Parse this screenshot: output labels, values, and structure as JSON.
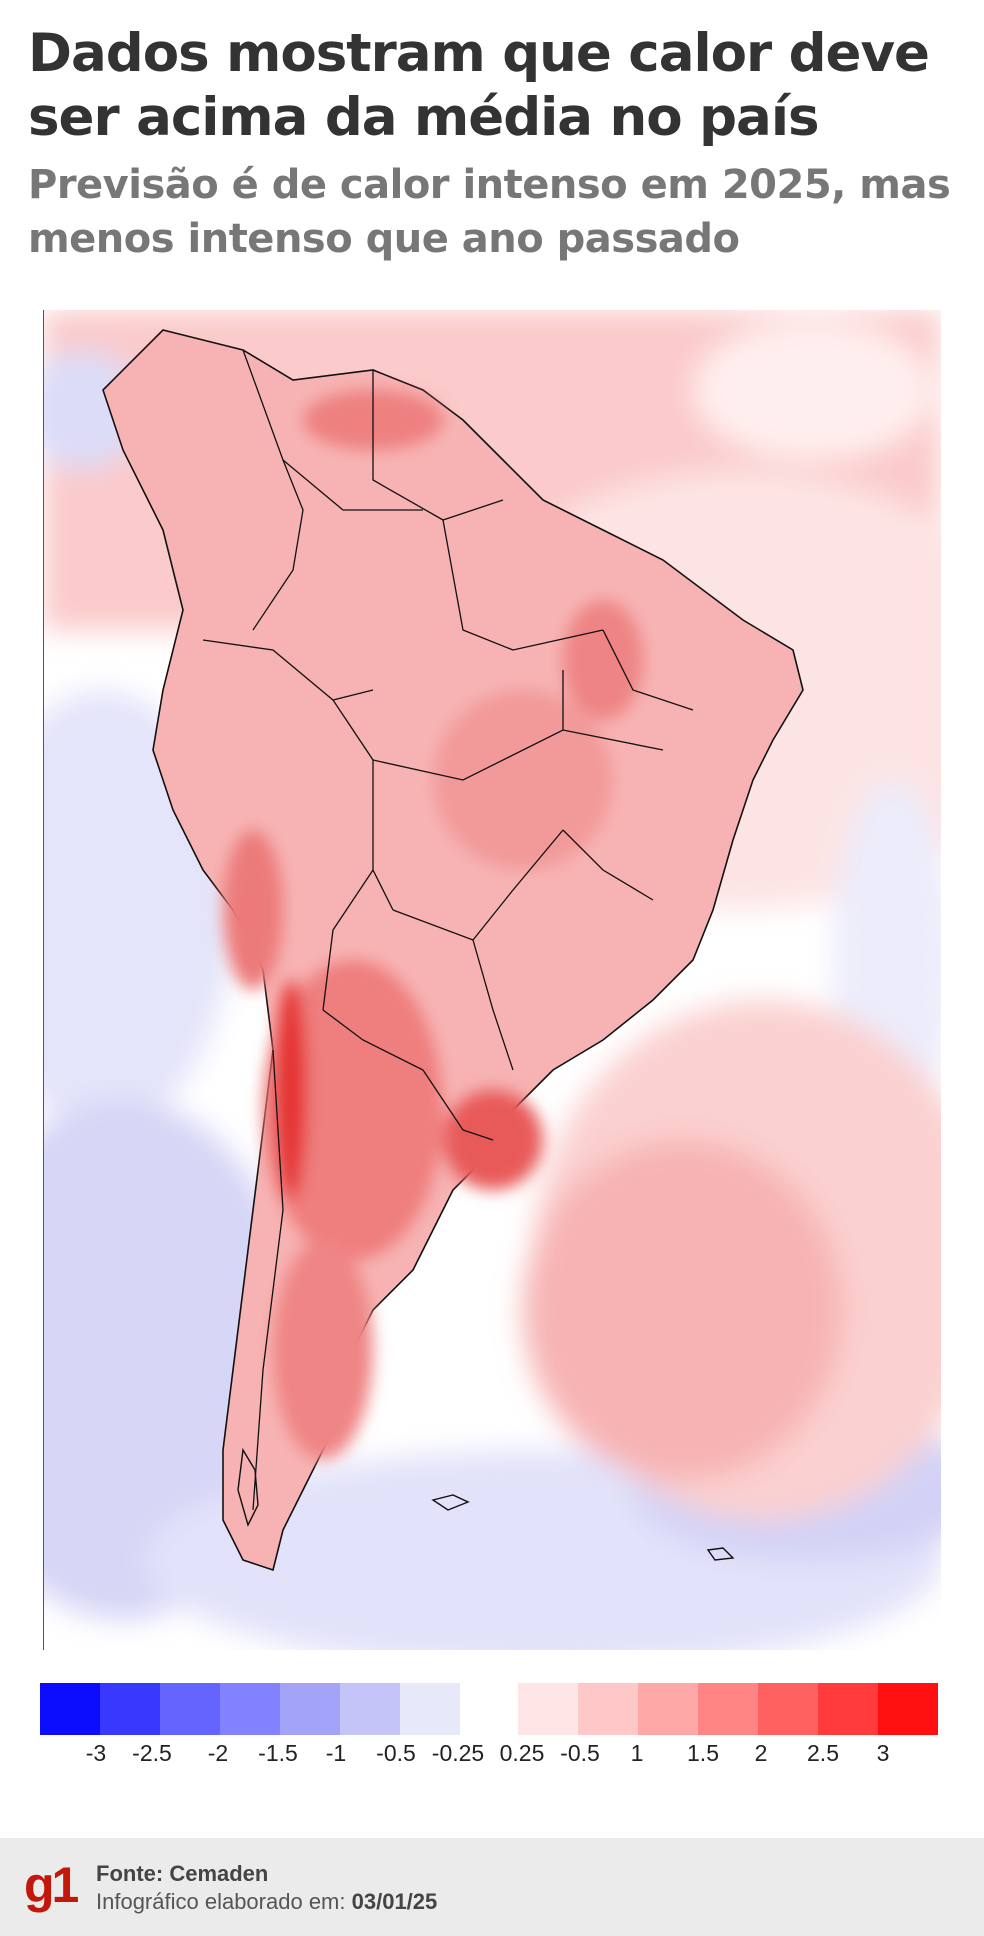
{
  "header": {
    "title": "Dados mostram que calor deve ser acima da média no país",
    "subtitle": "Previsão é de calor intenso em 2025, mas menos intenso que ano passado"
  },
  "map": {
    "region": "South America",
    "colors": {
      "land_outline": "#111111",
      "ocean_light_blue": "#e6e6fa",
      "warm_light": "#fbd0d0",
      "warm_mid": "#f6a3a3",
      "warm_strong": "#ef6d6d",
      "warm_peak": "#e53434"
    }
  },
  "legend": {
    "negative_colors": [
      "#0c0cff",
      "#3838ff",
      "#6464ff",
      "#8282ff",
      "#a3a3f8",
      "#c4c4f8",
      "#e8e8fb"
    ],
    "positive_colors": [
      "#ffe6e6",
      "#ffc8c8",
      "#ffa8a8",
      "#ff8585",
      "#ff6060",
      "#ff3b3b",
      "#ff0f0f"
    ],
    "ticks": [
      "-3",
      "-2.5",
      "-2",
      "-1.5",
      "-1",
      "-0.5",
      "-0.25",
      "0.25",
      "-0.5",
      "1",
      "1.5",
      "2",
      "2.5",
      "3"
    ]
  },
  "footer": {
    "logo": "g1",
    "source_label": "Fonte:",
    "source_value": "Cemaden",
    "made_label": "Infográfico elaborado em:",
    "made_date": "03/01/25"
  }
}
